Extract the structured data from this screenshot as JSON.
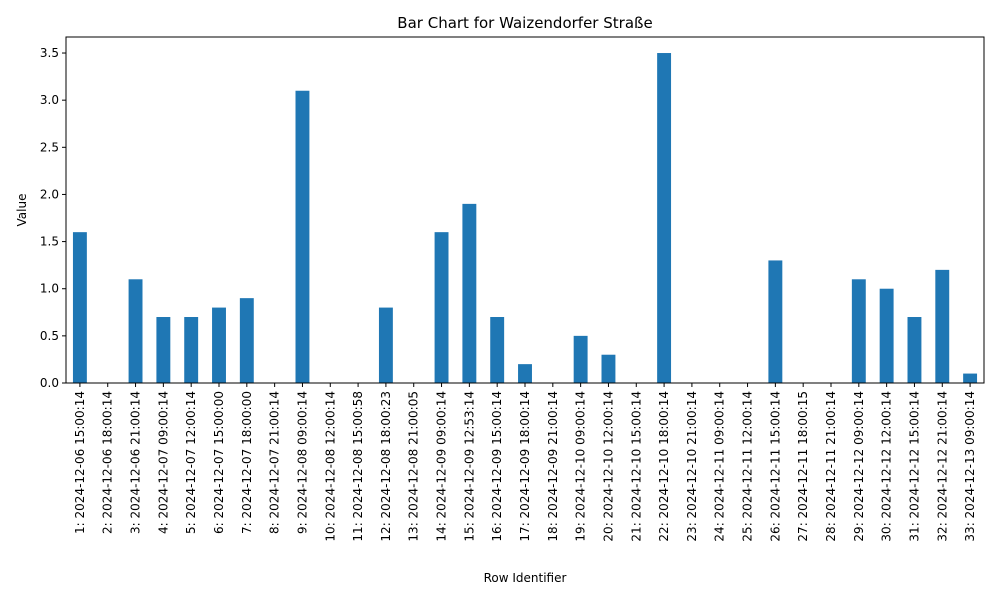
{
  "chart_data": {
    "type": "bar",
    "title": "Bar Chart for Waizendorfer Straße",
    "xlabel": "Row Identifier",
    "ylabel": "Value",
    "ylim": [
      0,
      3.67
    ],
    "yticks": [
      "0.0",
      "0.5",
      "1.0",
      "1.5",
      "2.0",
      "2.5",
      "3.0",
      "3.5"
    ],
    "grid": false,
    "legend": "none",
    "bar_color": "#1f77b4",
    "categories": [
      "1: 2024-12-06 15:00:14",
      "2: 2024-12-06 18:00:14",
      "3: 2024-12-06 21:00:14",
      "4: 2024-12-07 09:00:14",
      "5: 2024-12-07 12:00:14",
      "6: 2024-12-07 15:00:00",
      "7: 2024-12-07 18:00:00",
      "8: 2024-12-07 21:00:14",
      "9: 2024-12-08 09:00:14",
      "10: 2024-12-08 12:00:14",
      "11: 2024-12-08 15:00:58",
      "12: 2024-12-08 18:00:23",
      "13: 2024-12-08 21:00:05",
      "14: 2024-12-09 09:00:14",
      "15: 2024-12-09 12:53:14",
      "16: 2024-12-09 15:00:14",
      "17: 2024-12-09 18:00:14",
      "18: 2024-12-09 21:00:14",
      "19: 2024-12-10 09:00:14",
      "20: 2024-12-10 12:00:14",
      "21: 2024-12-10 15:00:14",
      "22: 2024-12-10 18:00:14",
      "23: 2024-12-10 21:00:14",
      "24: 2024-12-11 09:00:14",
      "25: 2024-12-11 12:00:14",
      "26: 2024-12-11 15:00:14",
      "27: 2024-12-11 18:00:15",
      "28: 2024-12-11 21:00:14",
      "29: 2024-12-12 09:00:14",
      "30: 2024-12-12 12:00:14",
      "31: 2024-12-12 15:00:14",
      "32: 2024-12-12 21:00:14",
      "33: 2024-12-13 09:00:14"
    ],
    "values": [
      1.6,
      0,
      1.1,
      0.7,
      0.7,
      0.8,
      0.9,
      0,
      3.1,
      0,
      0,
      0.8,
      0,
      1.6,
      1.9,
      0.7,
      0.2,
      0,
      0.5,
      0.3,
      0,
      3.5,
      0,
      0,
      0,
      1.3,
      0,
      0,
      1.1,
      1.0,
      0.7,
      1.2,
      0.1
    ]
  }
}
